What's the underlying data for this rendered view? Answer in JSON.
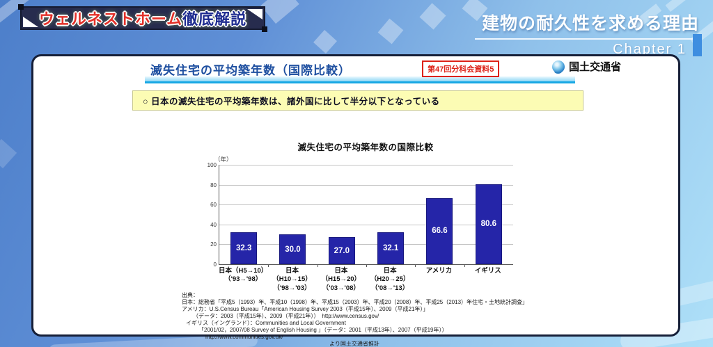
{
  "banner": {
    "title_red": "ウェルネストホーム",
    "title_navy": "徹底解説"
  },
  "chapter": {
    "title": "建物の耐久性を求める理由",
    "label": "Chapter 1"
  },
  "card": {
    "header": {
      "title": "滅失住宅の平均築年数（国際比較）",
      "badge": "第47回分科会資料5",
      "ministry": "国土交通省"
    },
    "callout": "○ 日本の滅失住宅の平均築年数は、諸外国に比して半分以下となっている",
    "source": {
      "lines": [
        "出典：",
        "日本：総務省「平成5（1993）年、平成10（1998）年、平成15（2003）年、平成20（2008）年、平成25（2013）年住宅・土地統計調査」",
        "アメリカ：U.S.Census Bureau「American Housing Survey 2003（平成15年）、2009（平成21年）」",
        "（データ：2003（平成15年）、2009（平成21年））　http://www.census.gov/",
        "イギリス（イングランド）：Communities and Local Government",
        "「2001/02，2007/08 Survey of English Housing 」（データ：2001（平成13年）、2007（平成19年））",
        "http://www.communities.gov.uk/",
        "より国土交通省推計"
      ]
    }
  },
  "chart_data": {
    "type": "bar",
    "title": "滅失住宅の平均築年数の国際比較",
    "unit_label": "（年）",
    "categories": [
      "日本（H5→10）",
      "日本（H10→15）",
      "日本（H15→20）",
      "日本（H20→25）",
      "アメリカ",
      "イギリス"
    ],
    "sublabels": [
      "（'93→'98）",
      "（'98→'03）",
      "（'03→'08）",
      "（'08→'13）",
      "",
      ""
    ],
    "values": [
      32.3,
      30.0,
      27.0,
      32.1,
      66.6,
      80.6
    ],
    "ylim": [
      0,
      100
    ],
    "yticks": [
      0,
      20,
      40,
      60,
      80,
      100
    ],
    "grid": true,
    "legend": "none",
    "bar_color": "#2525a8"
  },
  "colors": {
    "bar_blue": "#2525a8",
    "badge_red": "#dd2218",
    "header_blue": "#1e4fa0",
    "underline_blue": "#18a8e4",
    "callout_bg": "#fcfcb4",
    "chapter_bar_blue": "#3e8ee0"
  }
}
